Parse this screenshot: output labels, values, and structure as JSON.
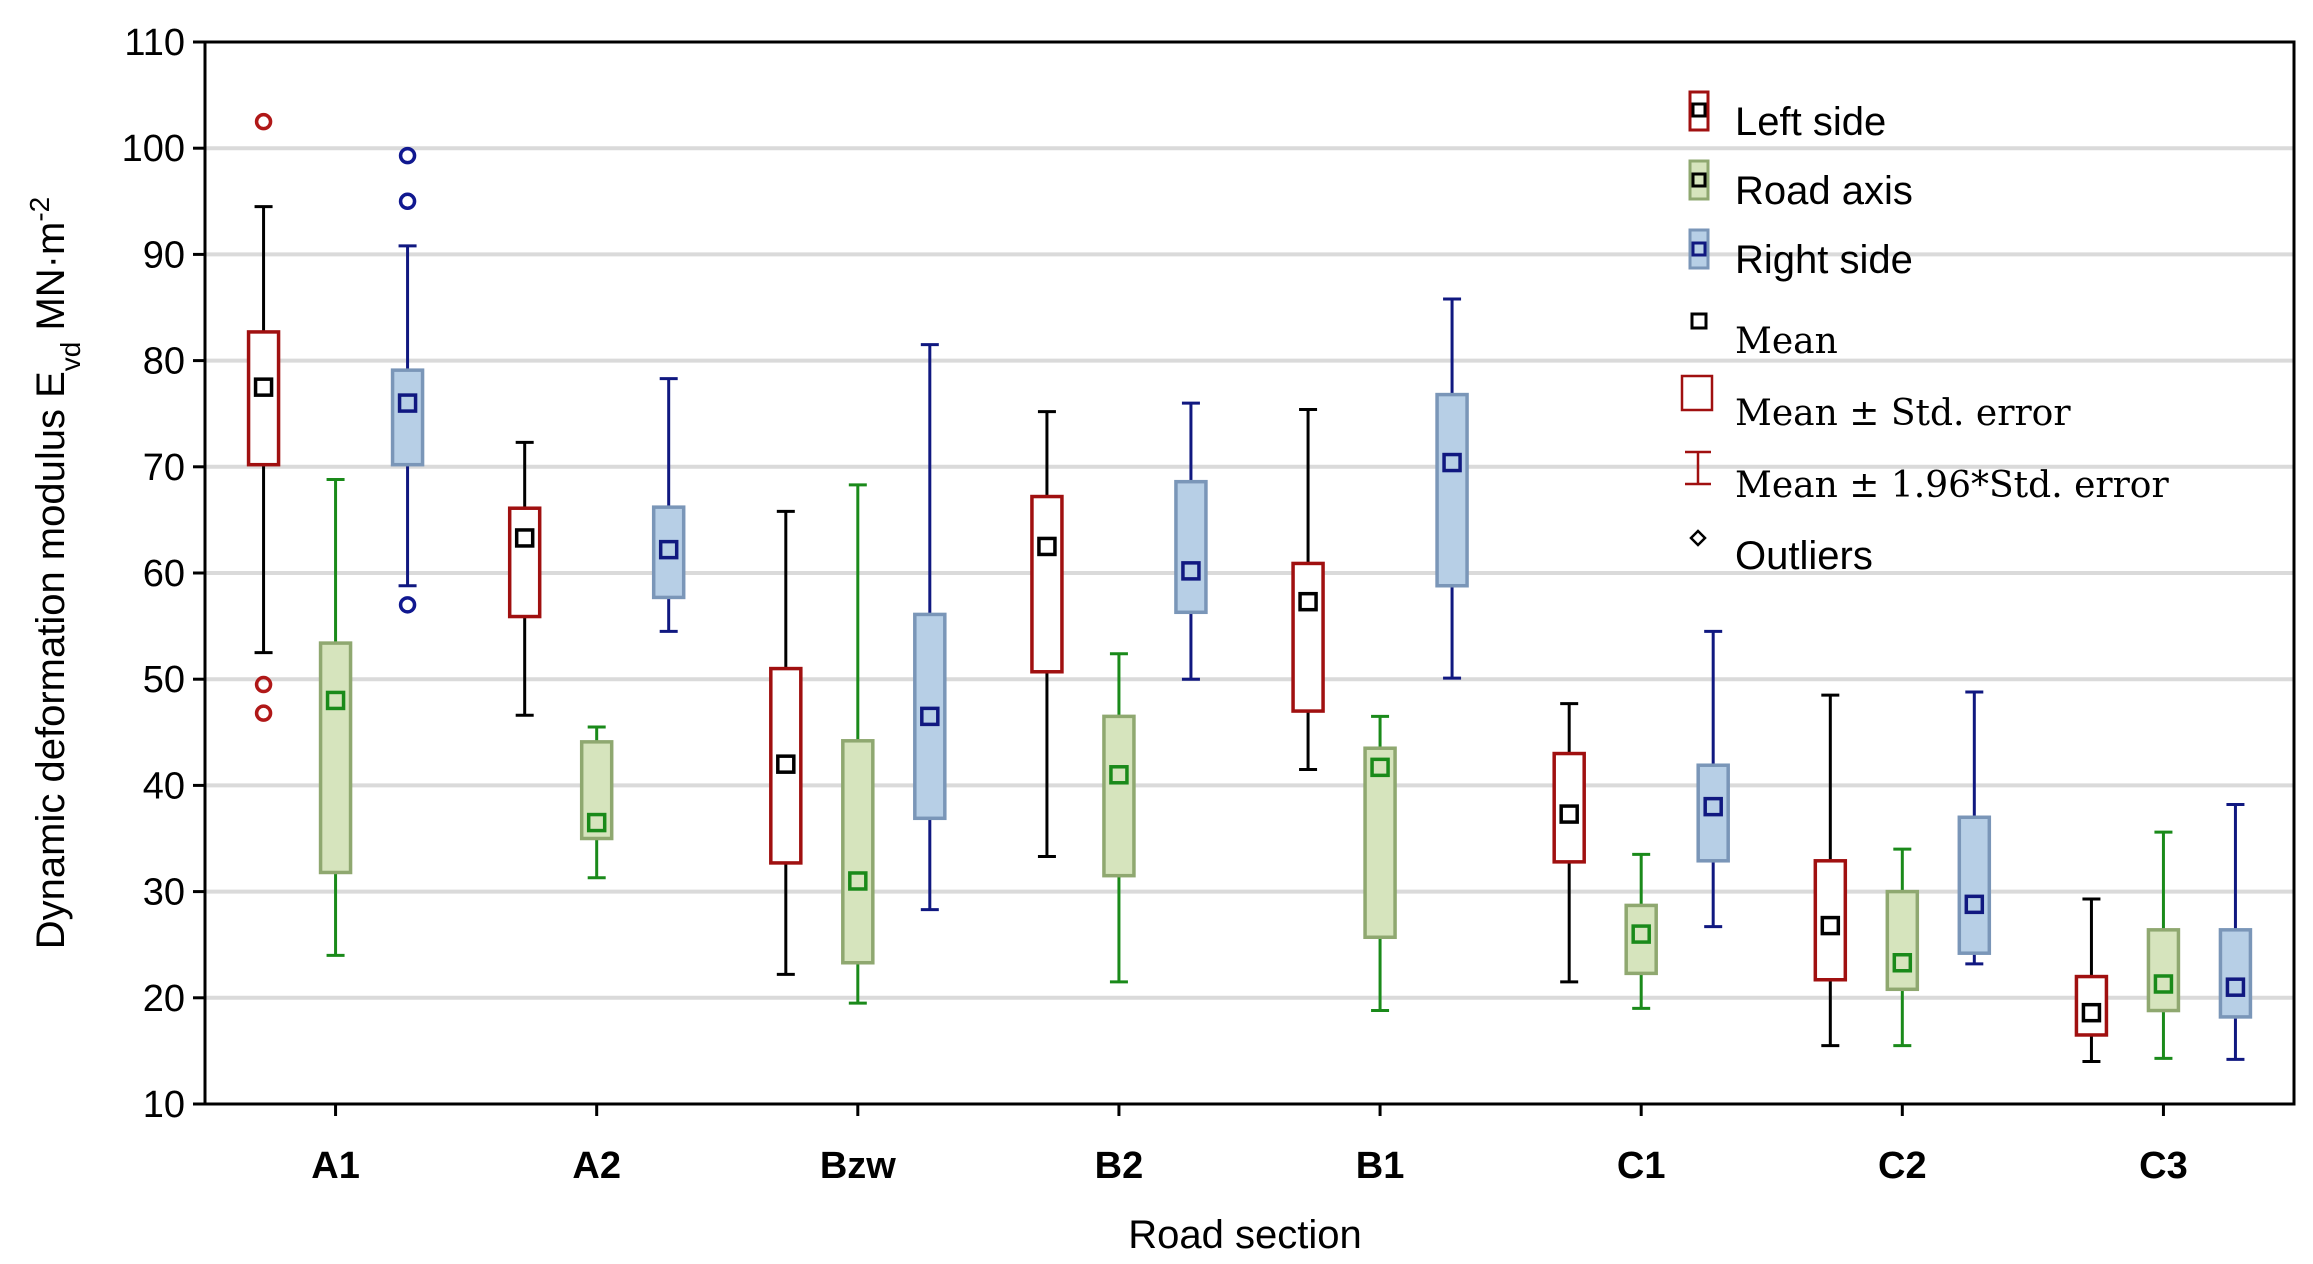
{
  "chart_data": {
    "type": "box",
    "title": "",
    "xlabel": "Road section",
    "ylabel_main": "Dynamic deformation modulus E",
    "ylabel_sub": "vd",
    "ylabel_unit": " MN·m",
    "ylabel_sup": "-2",
    "ylim": [
      10,
      110
    ],
    "yticks": [
      10,
      20,
      30,
      40,
      50,
      60,
      70,
      80,
      90,
      100,
      110
    ],
    "categories": [
      "A1",
      "A2",
      "Bzw",
      "B2",
      "B1",
      "C1",
      "C2",
      "C3"
    ],
    "series": [
      {
        "name": "Left side",
        "stroke": "#a01010",
        "fill": "#ffffff",
        "whisker": "#000000",
        "outlier": "#b01818",
        "mean": [
          77.5,
          63.3,
          42.0,
          62.5,
          57.3,
          37.3,
          26.8,
          18.6
        ],
        "box_low": [
          70.2,
          55.9,
          32.7,
          50.7,
          47.0,
          32.8,
          21.7,
          16.5
        ],
        "box_high": [
          82.7,
          66.1,
          51.0,
          67.2,
          60.9,
          43.0,
          32.9,
          22.0
        ],
        "whisker_low": [
          52.5,
          46.6,
          22.2,
          33.3,
          41.5,
          21.5,
          15.5,
          14.0
        ],
        "whisker_high": [
          94.5,
          72.3,
          65.8,
          75.2,
          75.4,
          47.7,
          48.5,
          29.3
        ],
        "outliers": [
          [
            0,
            102.5
          ],
          [
            0,
            49.5
          ],
          [
            0,
            46.8
          ]
        ]
      },
      {
        "name": "Road axis",
        "stroke": "#8fa870",
        "fill": "#d6e4bd",
        "whisker": "#1a8a1a",
        "outlier": "#1a8a1a",
        "mean": [
          48.0,
          36.5,
          31.0,
          41.0,
          41.7,
          26.0,
          23.3,
          21.3
        ],
        "box_low": [
          31.8,
          35.0,
          23.3,
          31.5,
          25.7,
          22.3,
          20.8,
          18.8
        ],
        "box_high": [
          53.4,
          44.1,
          44.2,
          46.5,
          43.5,
          28.7,
          30.0,
          26.4
        ],
        "whisker_low": [
          24.0,
          31.3,
          19.5,
          21.5,
          18.8,
          19.0,
          15.5,
          14.3
        ],
        "whisker_high": [
          68.8,
          45.5,
          68.3,
          52.4,
          46.5,
          33.5,
          34.0,
          35.6
        ],
        "outliers": []
      },
      {
        "name": "Right side",
        "stroke": "#7a96b8",
        "fill": "#b7cfe6",
        "whisker": "#101880",
        "outlier": "#101890",
        "mean": [
          76.0,
          62.2,
          46.5,
          60.2,
          70.4,
          38.0,
          28.8,
          21.0
        ],
        "box_low": [
          70.2,
          57.7,
          36.9,
          56.3,
          58.8,
          32.9,
          24.2,
          18.2
        ],
        "box_high": [
          79.1,
          66.2,
          56.1,
          68.6,
          76.8,
          41.9,
          37.0,
          26.4
        ],
        "whisker_low": [
          58.8,
          54.5,
          28.3,
          50.0,
          50.1,
          26.7,
          23.2,
          14.2
        ],
        "whisker_high": [
          90.8,
          78.3,
          81.5,
          76.0,
          85.8,
          54.5,
          48.8,
          38.2
        ],
        "outliers": [
          [
            0,
            99.3
          ],
          [
            0,
            95.0
          ],
          [
            0,
            57.0
          ]
        ]
      }
    ],
    "legend": {
      "position": "top-right",
      "left_side": "Left side",
      "road_axis": "Road axis",
      "right_side": "Right side",
      "mean": "Mean",
      "std_error": "Mean ± Std. error",
      "ci": "Mean ± 1.96*Std. error",
      "outliers": "Outliers"
    },
    "grid": true
  }
}
